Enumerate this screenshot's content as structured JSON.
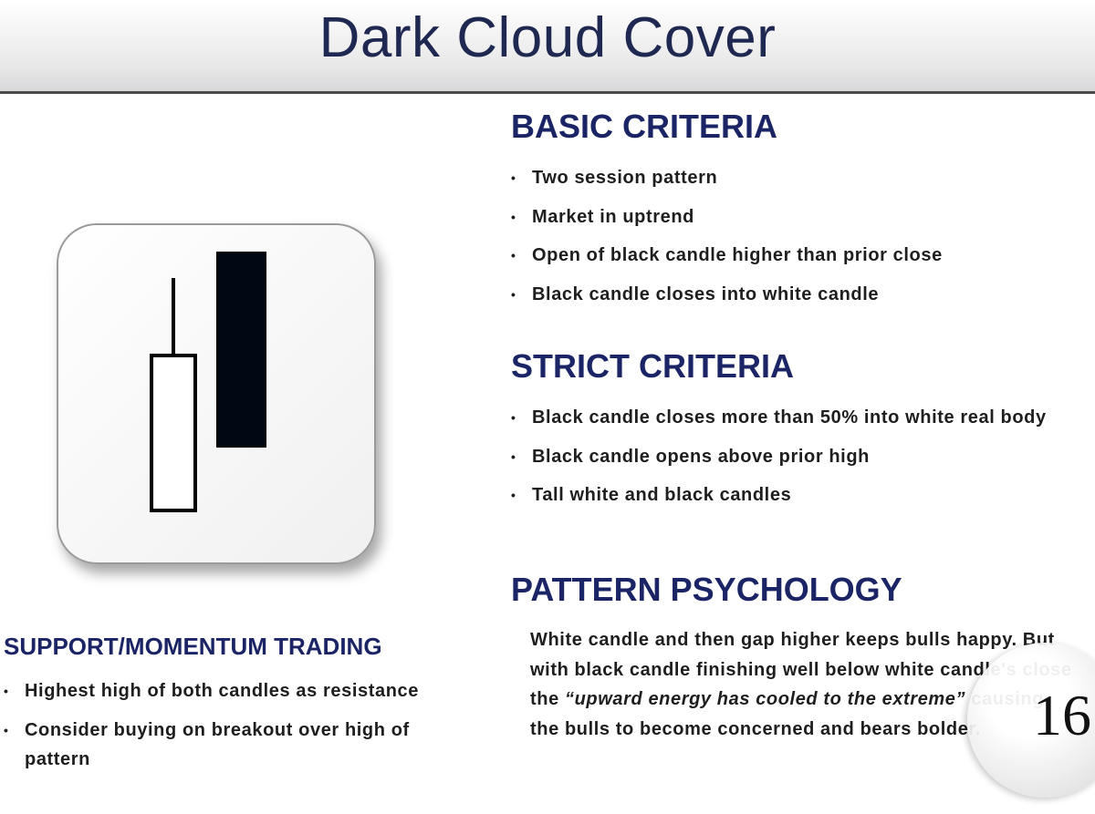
{
  "header": {
    "title": "Dark Cloud Cover"
  },
  "basic_criteria": {
    "heading": "BASIC CRITERIA",
    "bullets": [
      "Two session pattern",
      "Market in uptrend",
      "Open of black candle higher than prior close",
      "Black candle closes into white candle"
    ]
  },
  "strict_criteria": {
    "heading": "STRICT CRITERIA",
    "bullets": [
      "Black candle closes more than 50% into white real body",
      "Black candle opens above prior high",
      "Tall white and black candles"
    ]
  },
  "pattern_psychology": {
    "heading": "PATTERN PSYCHOLOGY",
    "text_before": "White candle and then gap higher keeps bulls happy. But with black candle finishing well below white candle's close the ",
    "text_italic": "“upward energy has cooled to the extreme”",
    "text_after": " causing the bulls to become concerned and bears bolder."
  },
  "support_momentum": {
    "heading": "SUPPORT/MOMENTUM TRADING",
    "bullets": [
      "Highest high of both candles as resistance",
      "Consider buying on breakout over high of pattern"
    ]
  },
  "page_number": "16"
}
